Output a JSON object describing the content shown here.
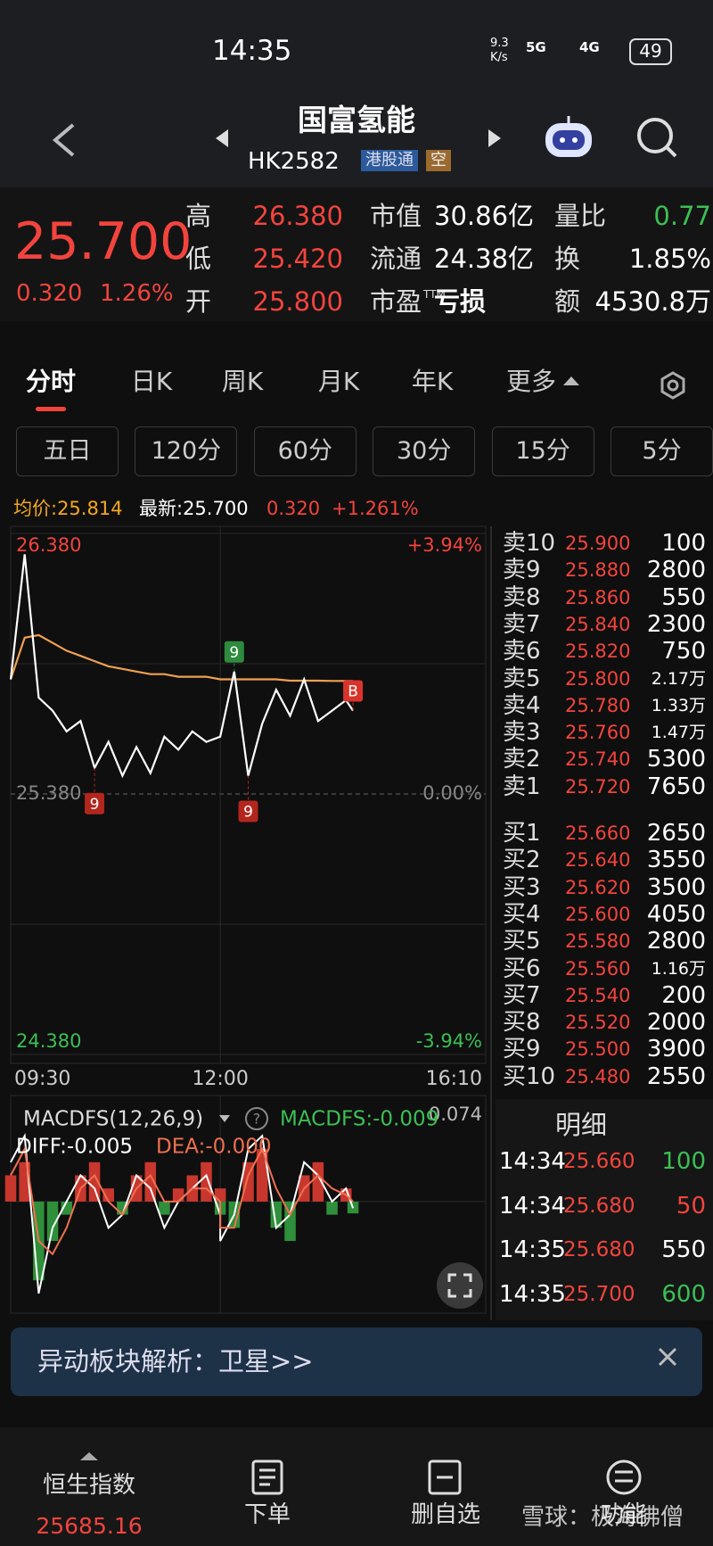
{
  "status_bar": {
    "time": "14:35",
    "net_speed": [
      "9.3",
      "K/s"
    ],
    "signal_1": "5G",
    "signal_2": "4G",
    "battery": "49"
  },
  "header": {
    "title": "国富氢能",
    "code": "HK2582",
    "tags": [
      "港股通",
      "空"
    ]
  },
  "quote": {
    "price": "25.700",
    "change": "0.320",
    "change_pct": "1.26%",
    "stats": [
      [
        {
          "label": "高",
          "value": "26.380",
          "color": "#f2443d"
        },
        {
          "label": "市值",
          "value": "30.86亿",
          "color": "#ffffff"
        },
        {
          "label": "量比",
          "value": "0.77",
          "color": "#3cbf54"
        }
      ],
      [
        {
          "label": "低",
          "value": "25.420",
          "color": "#f2443d"
        },
        {
          "label": "流通",
          "value": "24.38亿",
          "color": "#ffffff"
        },
        {
          "label": "换",
          "value": "1.85%",
          "color": "#ffffff"
        }
      ],
      [
        {
          "label": "开",
          "value": "25.800",
          "color": "#f2443d"
        },
        {
          "label": "市盈",
          "sup": "TTM",
          "value": "亏损",
          "color": "#ffffff"
        },
        {
          "label": "额",
          "value": "4530.8万",
          "color": "#ffffff"
        }
      ]
    ]
  },
  "tabs": [
    "分时",
    "日K",
    "周K",
    "月K",
    "年K",
    "更多"
  ],
  "periods": [
    "五日",
    "120分",
    "60分",
    "30分",
    "15分",
    "5分"
  ],
  "info": [
    {
      "text": "均价:25.814",
      "color": "#f5a623"
    },
    {
      "text": "最新:25.700",
      "color": "#ffffff"
    },
    {
      "text": "0.320",
      "color": "#f2443d"
    },
    {
      "text": "+1.261%",
      "color": "#f2443d"
    }
  ],
  "chart_data": [
    {
      "type": "line",
      "x": [
        "09:30",
        "09:40",
        "09:50",
        "10:00",
        "10:10",
        "10:20",
        "10:30",
        "10:40",
        "10:50",
        "11:00",
        "11:10",
        "11:20",
        "11:30",
        "11:40",
        "11:50",
        "12:00",
        "13:00",
        "13:10",
        "13:20",
        "13:30",
        "13:40",
        "13:50",
        "14:00",
        "14:10",
        "14:20",
        "14:30",
        "14:35"
      ],
      "series": [
        {
          "color": "#ffffff",
          "values": [
            25.82,
            26.3,
            25.75,
            25.7,
            25.62,
            25.66,
            25.48,
            25.58,
            25.45,
            25.56,
            25.46,
            25.6,
            25.55,
            25.62,
            25.58,
            25.6,
            25.6,
            25.85,
            25.45,
            25.65,
            25.78,
            25.68,
            25.82,
            25.66,
            25.7,
            25.74,
            25.7
          ]
        },
        {
          "color": "#f0a050",
          "values": [
            25.82,
            25.98,
            25.99,
            25.96,
            25.93,
            25.91,
            25.89,
            25.87,
            25.86,
            25.85,
            25.84,
            25.84,
            25.83,
            25.83,
            25.83,
            25.82,
            25.82,
            25.82,
            25.82,
            25.82,
            25.82,
            25.815,
            25.815,
            25.815,
            25.814,
            25.814,
            25.814
          ]
        }
      ],
      "ylim": [
        24.38,
        26.38
      ],
      "yticks": [
        {
          "value": 24.38,
          "label": "24.380"
        },
        {
          "value": 25.38,
          "label": "25.380"
        },
        {
          "value": 26.38,
          "label": "26.380"
        }
      ],
      "y2lim": [
        -3.94,
        3.94
      ],
      "y2ticks": [
        {
          "value": -3.94,
          "label": "-3.94%"
        },
        {
          "value": 0,
          "label": "0.00%"
        },
        {
          "value": 3.94,
          "label": "+3.94%"
        }
      ],
      "xticks": [
        "09:30",
        "12:00",
        "16:10"
      ],
      "markers": [
        {
          "x": "10:30",
          "label": "9",
          "position": "below",
          "color": "#b3261e"
        },
        {
          "x": "13:10",
          "label": "9",
          "position": "above",
          "color": "#2e8b3e"
        },
        {
          "x": "13:20",
          "label": "9",
          "position": "below",
          "color": "#b3261e"
        },
        {
          "x": "14:35",
          "label": "B",
          "position": "above",
          "color": "#d9342b"
        }
      ]
    },
    {
      "type": "macd",
      "title": "MACDFS(12,26,9)",
      "help_icon": "?",
      "value_text": "MACDFS:-0.009",
      "diff_text": "DIFF:-0.005",
      "dea_text": "DEA:-0.000",
      "x": [
        "09:30",
        "09:40",
        "09:50",
        "10:00",
        "10:10",
        "10:20",
        "10:30",
        "10:40",
        "10:50",
        "11:00",
        "11:10",
        "11:20",
        "11:30",
        "11:40",
        "11:50",
        "12:00",
        "13:00",
        "13:10",
        "13:20",
        "13:30",
        "13:40",
        "13:50",
        "14:00",
        "14:10",
        "14:20",
        "14:30",
        "14:35"
      ],
      "histogram": [
        0.02,
        0.03,
        -0.06,
        -0.03,
        -0.01,
        0.02,
        0.03,
        0.01,
        -0.01,
        0.02,
        0.03,
        -0.01,
        0.01,
        0.02,
        0.03,
        0.01,
        -0.01,
        -0.02,
        0.03,
        0.04,
        -0.02,
        -0.03,
        0.02,
        0.03,
        -0.01,
        0.01,
        -0.009
      ],
      "up_color": "#c8372d",
      "down_color": "#2f8f3a",
      "series": [
        {
          "color": "#ffffff",
          "values": [
            0.03,
            0.05,
            -0.07,
            -0.02,
            0.0,
            0.02,
            0.01,
            -0.02,
            -0.01,
            0.02,
            0.01,
            -0.02,
            0.0,
            0.01,
            0.02,
            -0.01,
            -0.03,
            -0.01,
            0.04,
            0.05,
            -0.02,
            -0.01,
            0.03,
            0.02,
            0.0,
            0.01,
            -0.005
          ]
        },
        {
          "color": "#f07050",
          "values": [
            0.02,
            0.04,
            -0.03,
            -0.04,
            -0.02,
            0.01,
            0.02,
            0.0,
            -0.01,
            0.01,
            0.02,
            0.0,
            0.0,
            0.01,
            0.01,
            0.0,
            -0.02,
            -0.02,
            0.02,
            0.04,
            0.01,
            -0.01,
            0.01,
            0.02,
            0.01,
            0.005,
            -0.0
          ]
        }
      ],
      "ylim": [
        -0.085,
        0.074
      ],
      "yticks": [
        0.074
      ]
    }
  ],
  "order_book": {
    "asks": [
      [
        "卖10",
        "25.900",
        "100"
      ],
      [
        "卖9",
        "25.880",
        "2800"
      ],
      [
        "卖8",
        "25.860",
        "550"
      ],
      [
        "卖7",
        "25.840",
        "2300"
      ],
      [
        "卖6",
        "25.820",
        "750"
      ],
      [
        "卖5",
        "25.800",
        "2.17万"
      ],
      [
        "卖4",
        "25.780",
        "1.33万"
      ],
      [
        "卖3",
        "25.760",
        "1.47万"
      ],
      [
        "卖2",
        "25.740",
        "5300"
      ],
      [
        "卖1",
        "25.720",
        "7650"
      ]
    ],
    "bids": [
      [
        "买1",
        "25.660",
        "2650"
      ],
      [
        "买2",
        "25.640",
        "3550"
      ],
      [
        "买3",
        "25.620",
        "3500"
      ],
      [
        "买4",
        "25.600",
        "4050"
      ],
      [
        "买5",
        "25.580",
        "2800"
      ],
      [
        "买6",
        "25.560",
        "1.16万"
      ],
      [
        "买7",
        "25.540",
        "200"
      ],
      [
        "买8",
        "25.520",
        "2000"
      ],
      [
        "买9",
        "25.500",
        "3900"
      ],
      [
        "买10",
        "25.480",
        "2550"
      ]
    ]
  },
  "trades": {
    "title": "明细",
    "rows": [
      {
        "time": "14:34",
        "price": "25.660",
        "volume": "100",
        "color": "#3cbf54"
      },
      {
        "time": "14:34",
        "price": "25.680",
        "volume": "50",
        "color": "#f2443d"
      },
      {
        "time": "14:35",
        "price": "25.680",
        "volume": "550",
        "color": "#ffffff"
      },
      {
        "time": "14:35",
        "price": "25.700",
        "volume": "600",
        "color": "#3cbf54"
      }
    ]
  },
  "banner": "异动板块解析：卫星>>",
  "nav": [
    {
      "label": "恒生指数",
      "value": "25685.16"
    },
    {
      "label": "下单"
    },
    {
      "label": "删自选"
    },
    {
      "label": "功能"
    }
  ],
  "watermark": "雪球：极海佛僧"
}
